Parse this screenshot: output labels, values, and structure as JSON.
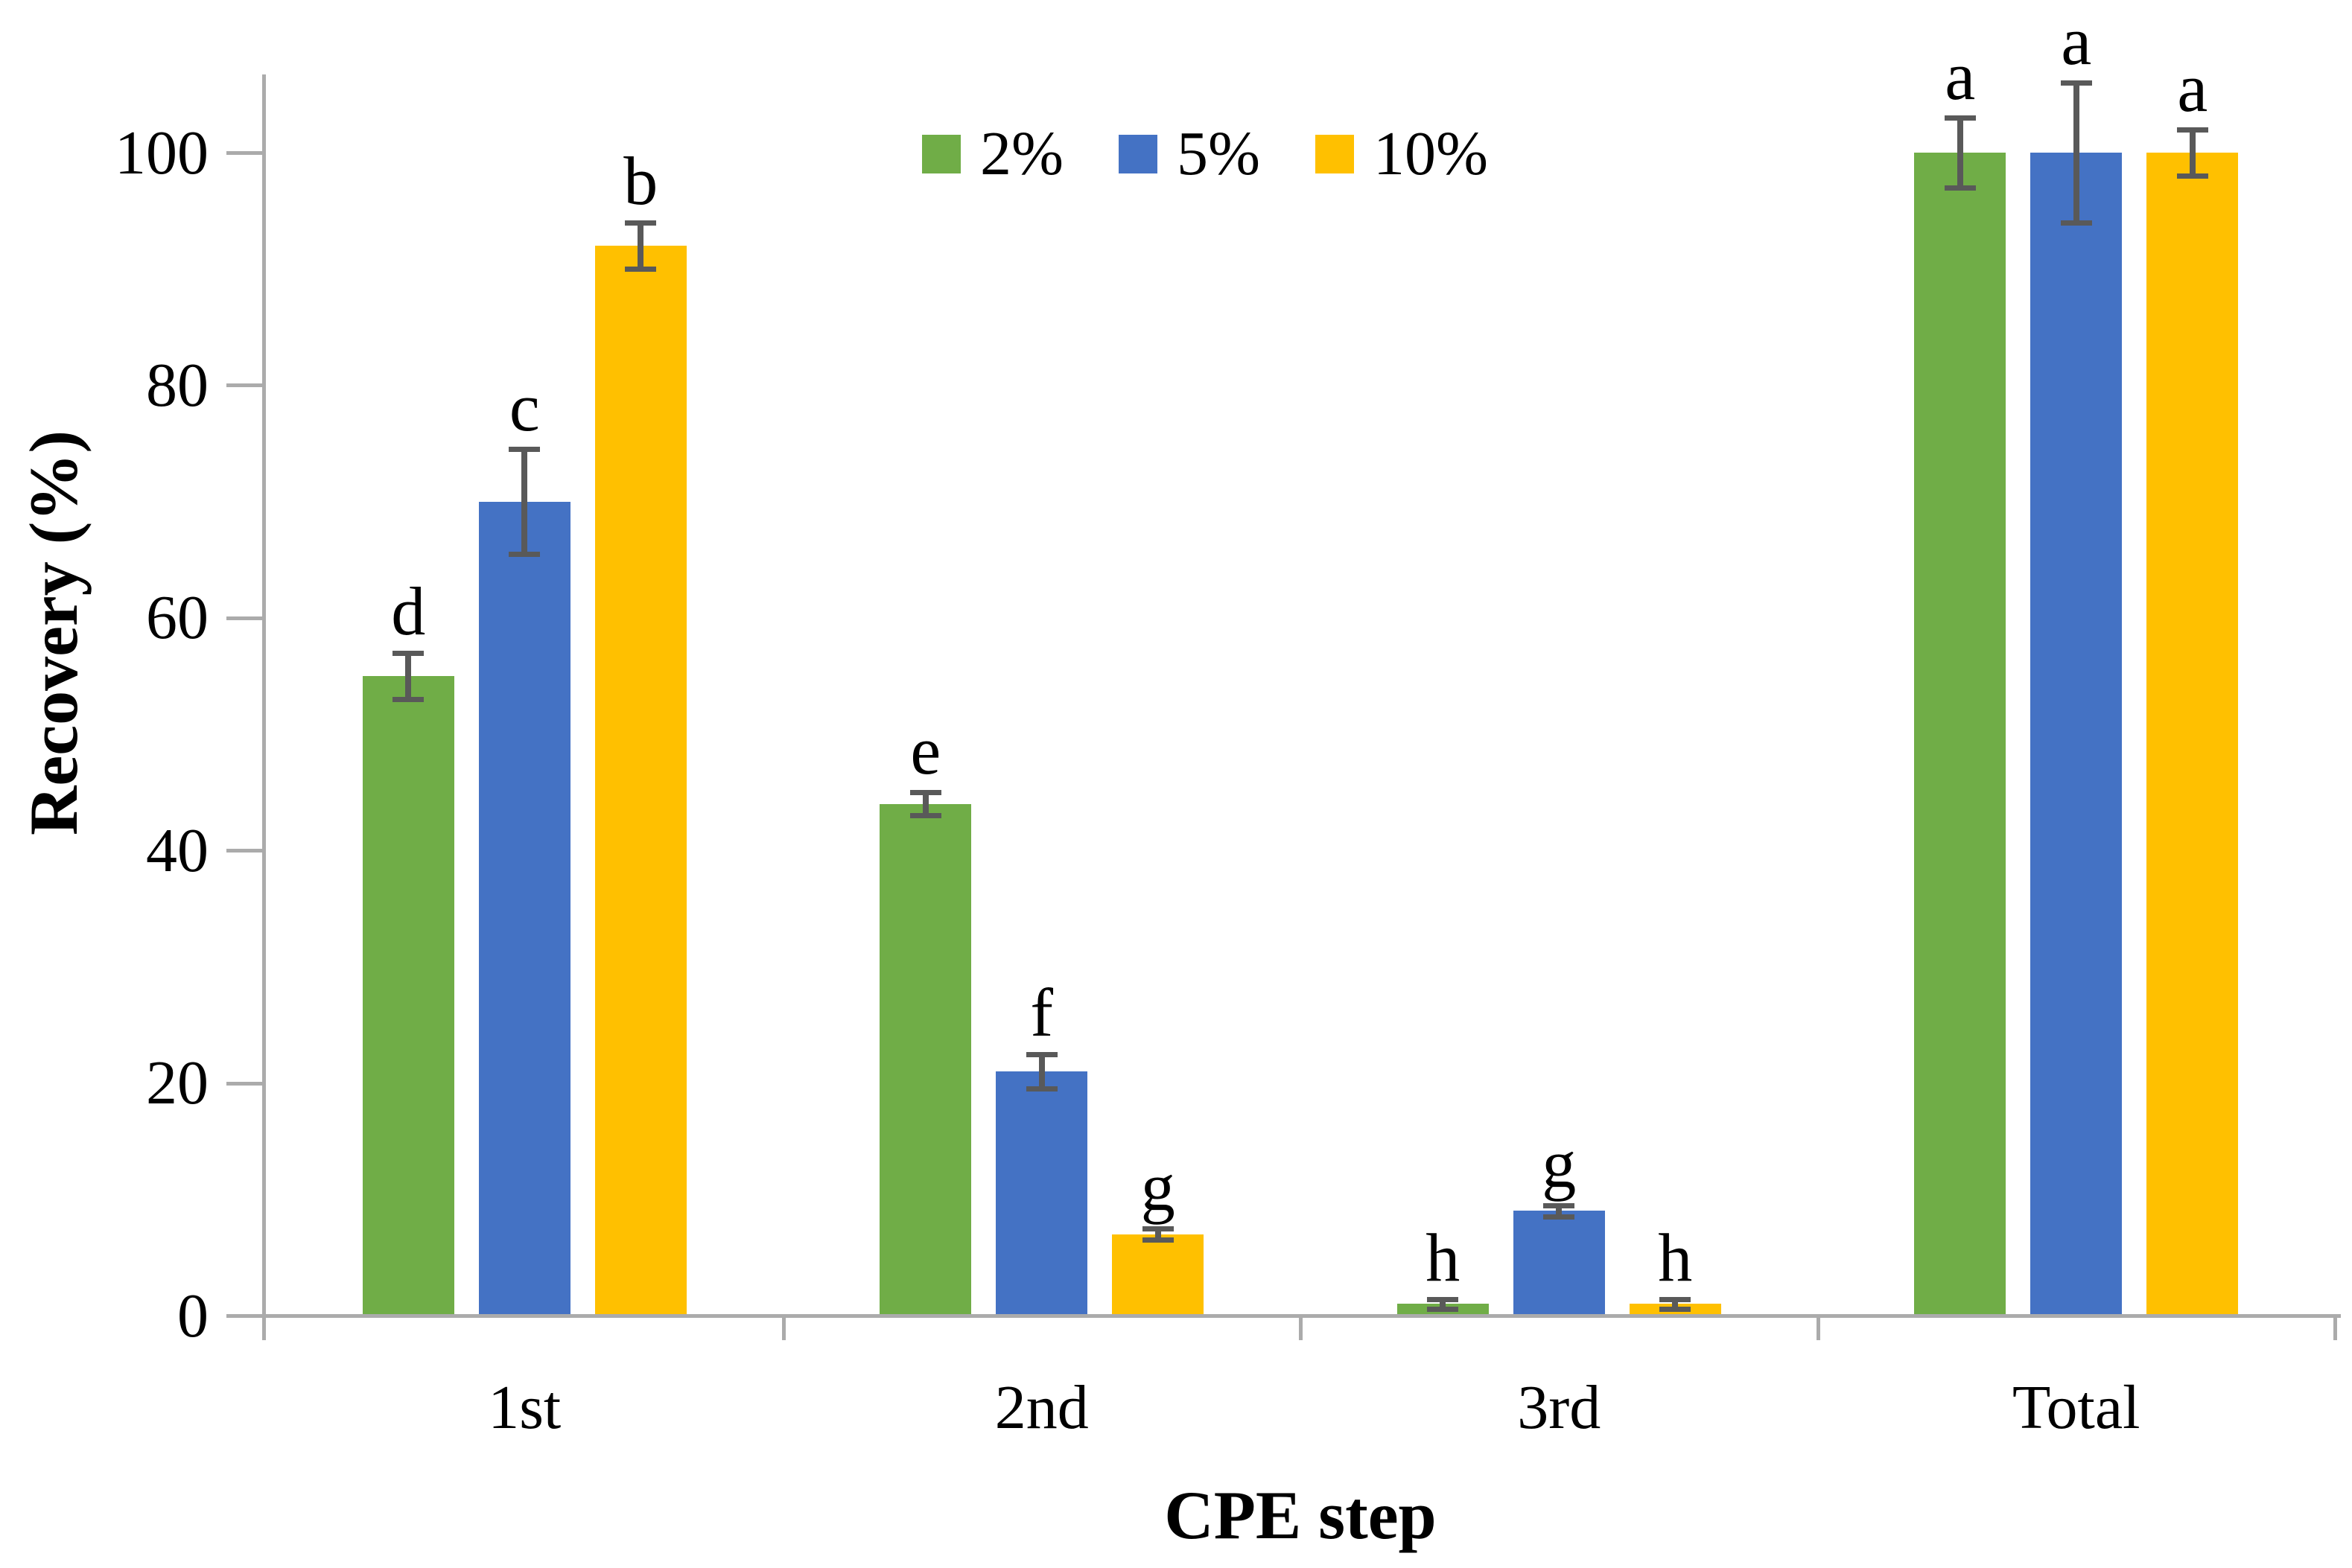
{
  "theme": {
    "background": "#FFFFFF",
    "axis_color": "#ABABAB",
    "error_bar_color": "#595959",
    "text_color": "#000000"
  },
  "chart_data": {
    "type": "bar",
    "title": "",
    "xlabel": "CPE step",
    "ylabel": "Recovery (%)",
    "categories": [
      "1st",
      "2nd",
      "3rd",
      "Total"
    ],
    "series": [
      {
        "name": "2%",
        "color": "#70AD47",
        "values": [
          55,
          44,
          1,
          100
        ],
        "errors": [
          2,
          1,
          0.4,
          3
        ],
        "letters": [
          "d",
          "e",
          "h",
          "a"
        ]
      },
      {
        "name": "5%",
        "color": "#4472C4",
        "values": [
          70,
          21,
          9,
          100
        ],
        "errors": [
          4.5,
          1.5,
          0.5,
          6
        ],
        "letters": [
          "c",
          "f",
          "g",
          "a"
        ]
      },
      {
        "name": "10%",
        "color": "#FFC000",
        "values": [
          92,
          7,
          1,
          100
        ],
        "errors": [
          2,
          0.5,
          0.4,
          2
        ],
        "letters": [
          "b",
          "g",
          "h",
          "a"
        ]
      }
    ],
    "ylim": [
      0,
      107
    ],
    "yticks": [
      0,
      20,
      40,
      60,
      80,
      100
    ],
    "grid": false,
    "legend_position": "top-center",
    "error_bars": true
  }
}
